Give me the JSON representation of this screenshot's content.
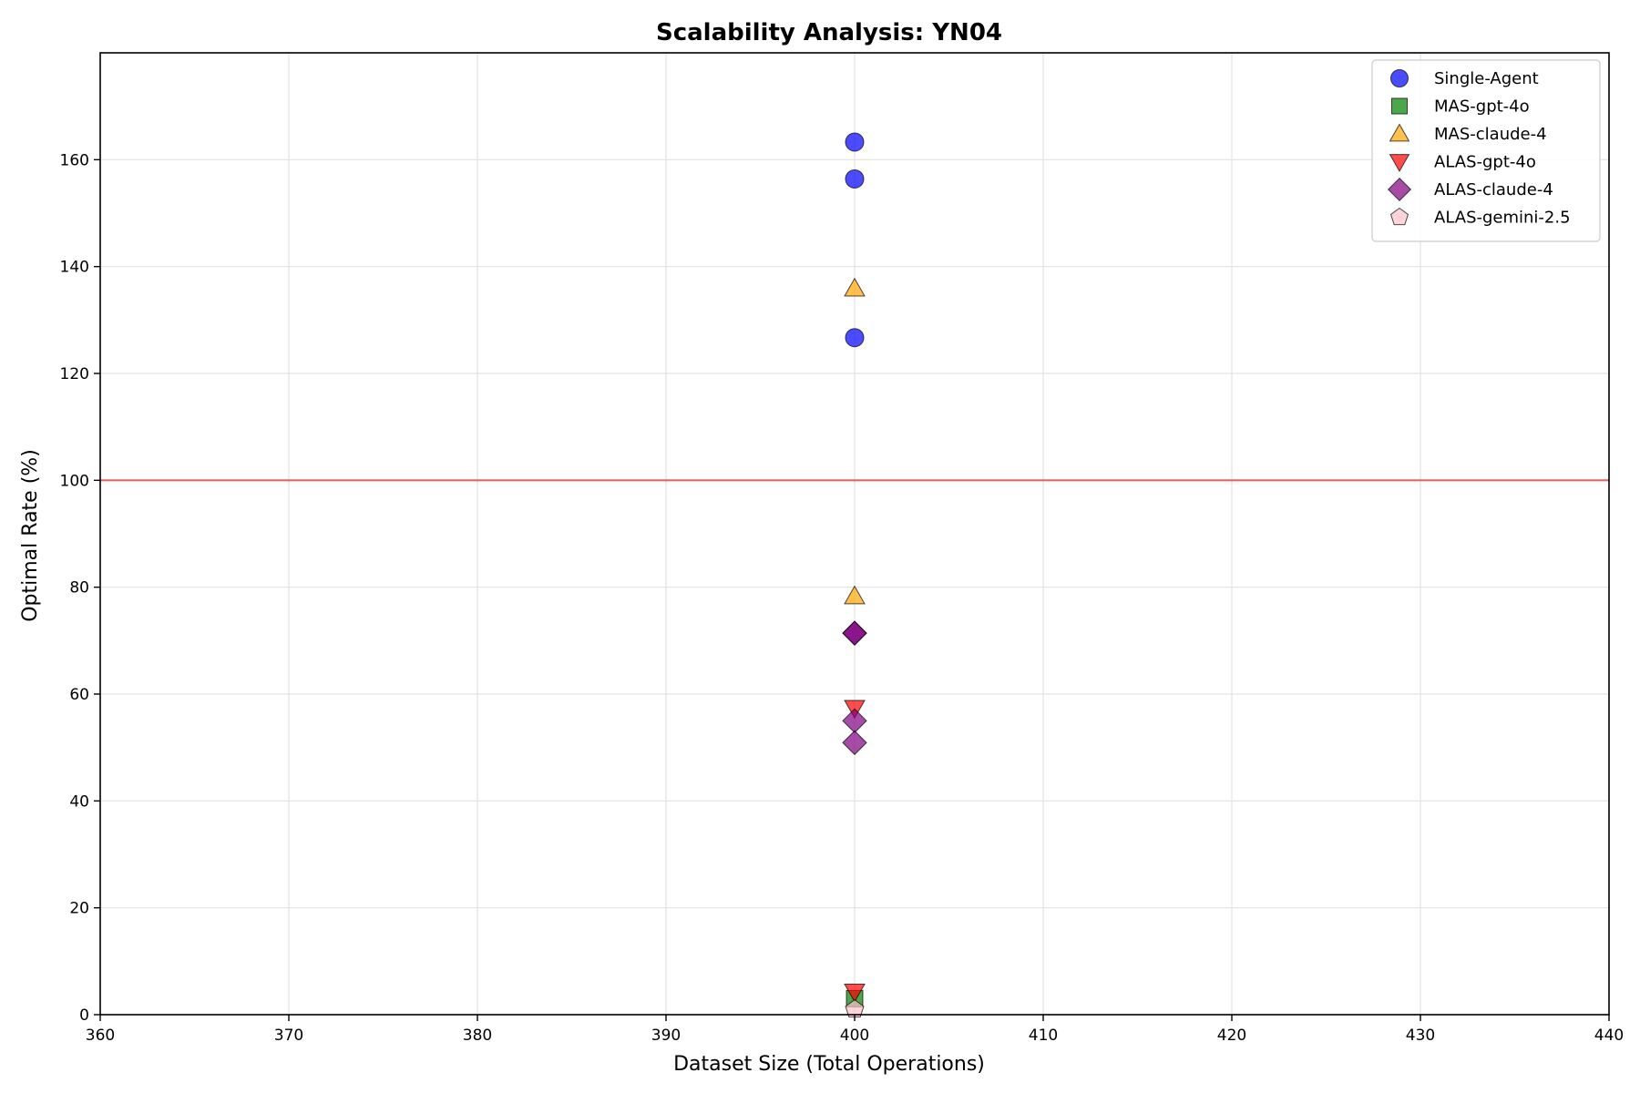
{
  "chart_data": {
    "type": "scatter",
    "title": "Scalability Analysis: YN04",
    "xlabel": "Dataset Size (Total Operations)",
    "ylabel": "Optimal Rate (%)",
    "xlim": [
      360,
      440
    ],
    "ylim": [
      0,
      180
    ],
    "xticks": [
      360,
      370,
      380,
      390,
      400,
      410,
      420,
      430,
      440
    ],
    "yticks": [
      0,
      20,
      40,
      60,
      80,
      100,
      120,
      140,
      160
    ],
    "grid": true,
    "legend_position": "top-right",
    "reference_line": {
      "y": 100,
      "color": "#e06666"
    },
    "series": [
      {
        "name": "Single-Agent",
        "marker": "circle",
        "color": "#0000ff",
        "points": [
          {
            "x": 400,
            "y": 163.3
          },
          {
            "x": 400,
            "y": 156.4
          },
          {
            "x": 400,
            "y": 126.7
          }
        ]
      },
      {
        "name": "MAS-gpt-4o",
        "marker": "square",
        "color": "#008000",
        "points": [
          {
            "x": 400,
            "y": 3.0
          }
        ]
      },
      {
        "name": "MAS-claude-4",
        "marker": "triangle-up",
        "color": "#ffa500",
        "points": [
          {
            "x": 400,
            "y": 135.9
          },
          {
            "x": 400,
            "y": 78.3
          }
        ]
      },
      {
        "name": "ALAS-gpt-4o",
        "marker": "triangle-down",
        "color": "#ff0000",
        "points": [
          {
            "x": 400,
            "y": 57.4
          },
          {
            "x": 400,
            "y": 4.3
          }
        ]
      },
      {
        "name": "ALAS-claude-4",
        "marker": "diamond",
        "color": "#800080",
        "points": [
          {
            "x": 400,
            "y": 71.4
          },
          {
            "x": 400,
            "y": 71.4
          },
          {
            "x": 400,
            "y": 55.0
          },
          {
            "x": 400,
            "y": 50.9
          }
        ]
      },
      {
        "name": "ALAS-gemini-2.5",
        "marker": "pentagon",
        "color": "#ffc0cb",
        "points": [
          {
            "x": 400,
            "y": 1.0
          }
        ]
      }
    ]
  }
}
